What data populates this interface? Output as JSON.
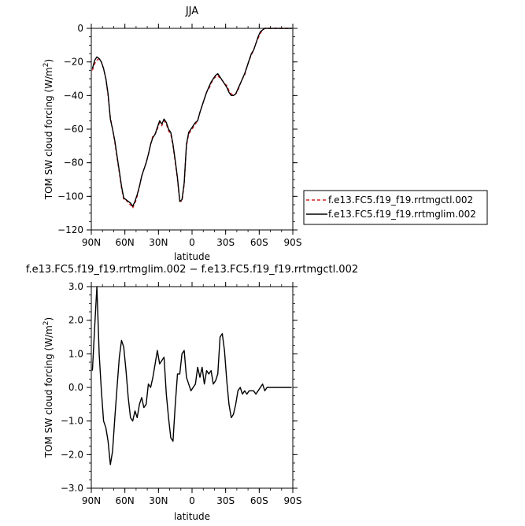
{
  "chart_data": [
    {
      "type": "line",
      "title": "JJA",
      "xlabel": "latitude",
      "ylabel": "TOM SW cloud forcing (W/m",
      "ylabel_sup": "2",
      "ylabel_close": ")",
      "xlim": [
        90,
        -90
      ],
      "ylim": [
        -120,
        0
      ],
      "x_ticks": [
        90,
        60,
        30,
        0,
        -30,
        -60,
        -90
      ],
      "x_tick_labels": [
        "90N",
        "60N",
        "30N",
        "0",
        "30S",
        "60S",
        "90S"
      ],
      "y_ticks": [
        -120,
        -100,
        -80,
        -60,
        -40,
        -20,
        0
      ],
      "y_tick_labels": [
        "−120",
        "−100",
        "−80",
        "−60",
        "−40",
        "−20",
        "0"
      ],
      "legend_position": "right",
      "series": [
        {
          "name": "f.e13.FC5.f19_f19.rrtmgctl.002",
          "color": "#d62020",
          "dash": "dashed",
          "x": [
            89,
            87,
            85,
            83,
            81,
            79,
            77,
            75,
            73,
            71,
            69,
            67,
            65,
            63,
            61,
            59,
            57,
            55,
            53,
            51,
            49,
            47,
            45,
            43,
            41,
            39,
            37,
            35,
            33,
            31,
            29,
            27,
            25,
            23,
            21,
            19,
            17,
            15,
            13,
            11,
            9,
            7,
            5,
            3,
            1,
            -1,
            -3,
            -5,
            -7,
            -9,
            -11,
            -13,
            -15,
            -17,
            -19,
            -21,
            -23,
            -25,
            -27,
            -29,
            -31,
            -33,
            -35,
            -37,
            -39,
            -41,
            -43,
            -45,
            -47,
            -49,
            -51,
            -53,
            -55,
            -57,
            -59,
            -61,
            -63,
            -65,
            -67,
            -69,
            -71,
            -73,
            -75,
            -77,
            -79,
            -81,
            -83,
            -85,
            -87,
            -89
          ],
          "y": [
            -25,
            -21,
            -19,
            -18,
            -20,
            -24,
            -30,
            -40,
            -53,
            -60,
            -68,
            -77,
            -86,
            -95,
            -102,
            -102,
            -104,
            -105,
            -107,
            -104,
            -100,
            -94,
            -88,
            -84,
            -80,
            -75,
            -69,
            -64,
            -63,
            -60,
            -56,
            -58,
            -55,
            -57,
            -61,
            -63,
            -70,
            -80,
            -90,
            -103,
            -103,
            -93,
            -70,
            -63,
            -61,
            -59,
            -57,
            -55,
            -50,
            -46,
            -42,
            -38,
            -36,
            -33,
            -30,
            -29,
            -28,
            -30,
            -31,
            -33,
            -34,
            -37,
            -39,
            -40,
            -39,
            -37,
            -33,
            -30,
            -28,
            -23,
            -19,
            -16,
            -13,
            -9,
            -6,
            -3,
            -1,
            0,
            0,
            0,
            0,
            0,
            0,
            0,
            0,
            0,
            0,
            0,
            0,
            0
          ]
        },
        {
          "name": "f.e13.FC5.f19_f19.rrtmglim.002",
          "color": "#000000",
          "dash": "solid",
          "x": [
            89,
            87,
            85,
            83,
            81,
            79,
            77,
            75,
            73,
            71,
            69,
            67,
            65,
            63,
            61,
            59,
            57,
            55,
            53,
            51,
            49,
            47,
            45,
            43,
            41,
            39,
            37,
            35,
            33,
            31,
            29,
            27,
            25,
            23,
            21,
            19,
            17,
            15,
            13,
            11,
            9,
            7,
            5,
            3,
            1,
            -1,
            -3,
            -5,
            -7,
            -9,
            -11,
            -13,
            -15,
            -17,
            -19,
            -21,
            -23,
            -25,
            -27,
            -29,
            -31,
            -33,
            -35,
            -37,
            -39,
            -41,
            -43,
            -45,
            -47,
            -49,
            -51,
            -53,
            -55,
            -57,
            -59,
            -61,
            -63,
            -65,
            -67,
            -69,
            -71,
            -73,
            -75,
            -77,
            -79,
            -81,
            -83,
            -85,
            -87,
            -89
          ],
          "y": [
            -24,
            -19,
            -17,
            -18,
            -20,
            -24,
            -30,
            -39,
            -54,
            -60,
            -67,
            -76,
            -85,
            -94,
            -101,
            -102,
            -103,
            -104,
            -106,
            -103,
            -99,
            -94,
            -88,
            -84,
            -80,
            -75,
            -69,
            -65,
            -63,
            -59,
            -55,
            -57,
            -54,
            -56,
            -60,
            -62,
            -69,
            -79,
            -89,
            -103,
            -102,
            -92,
            -69,
            -62,
            -60,
            -58,
            -56,
            -55,
            -50,
            -46,
            -42,
            -38,
            -35,
            -32,
            -30,
            -28,
            -27,
            -29,
            -31,
            -33,
            -35,
            -38,
            -40,
            -40,
            -39,
            -36,
            -33,
            -30,
            -27,
            -23,
            -19,
            -15,
            -13,
            -9,
            -5,
            -2,
            -1,
            0,
            0,
            0,
            0,
            0,
            0,
            0,
            0,
            0,
            0,
            0,
            0,
            0
          ]
        }
      ]
    },
    {
      "type": "line",
      "title": "f.e13.FC5.f19_f19.rrtmglim.002 − f.e13.FC5.f19_f19.rrtmgctl.002",
      "xlabel": "latitude",
      "ylabel": "TOM SW cloud forcing (W/m",
      "ylabel_sup": "2",
      "ylabel_close": ")",
      "xlim": [
        90,
        -90
      ],
      "ylim": [
        -3,
        3
      ],
      "x_ticks": [
        90,
        60,
        30,
        0,
        -30,
        -60,
        -90
      ],
      "x_tick_labels": [
        "90N",
        "60N",
        "30N",
        "0",
        "30S",
        "60S",
        "90S"
      ],
      "y_ticks": [
        -3,
        -2,
        -1,
        0,
        1,
        2,
        3
      ],
      "y_tick_labels": [
        "−3.0",
        "−2.0",
        "−1.0",
        "0.0",
        "1.0",
        "2.0",
        "3.0"
      ],
      "series": [
        {
          "color": "#000000",
          "x": [
            89,
            87,
            85,
            83,
            81,
            79,
            77,
            75,
            73,
            71,
            69,
            67,
            65,
            63,
            61,
            59,
            57,
            55,
            53,
            51,
            49,
            47,
            45,
            43,
            41,
            39,
            37,
            35,
            33,
            31,
            29,
            27,
            25,
            23,
            21,
            19,
            17,
            15,
            13,
            11,
            9,
            7,
            5,
            3,
            1,
            -1,
            -3,
            -5,
            -7,
            -9,
            -11,
            -13,
            -15,
            -17,
            -19,
            -21,
            -23,
            -25,
            -27,
            -29,
            -31,
            -33,
            -35,
            -37,
            -39,
            -41,
            -43,
            -45,
            -47,
            -49,
            -51,
            -53,
            -55,
            -57,
            -59,
            -61,
            -63,
            -65,
            -67,
            -69,
            -71,
            -73,
            -75,
            -77,
            -79,
            -81,
            -83,
            -85,
            -87,
            -89
          ],
          "y": [
            0.5,
            1.8,
            3.0,
            1.0,
            -0.1,
            -1.0,
            -1.2,
            -1.6,
            -2.3,
            -1.9,
            -0.9,
            0.0,
            0.9,
            1.4,
            1.2,
            0.5,
            -0.3,
            -0.9,
            -1.0,
            -0.7,
            -0.9,
            -0.5,
            -0.3,
            -0.6,
            -0.5,
            0.1,
            0.0,
            0.3,
            0.7,
            1.1,
            0.7,
            0.8,
            0.9,
            -0.2,
            -0.9,
            -1.5,
            -1.6,
            -0.5,
            0.4,
            0.4,
            1.0,
            1.1,
            0.3,
            0.1,
            -0.1,
            0.0,
            0.1,
            0.6,
            0.3,
            0.6,
            0.1,
            0.5,
            0.4,
            0.5,
            0.1,
            0.2,
            0.4,
            1.5,
            1.6,
            1.1,
            0.2,
            -0.5,
            -0.9,
            -0.8,
            -0.5,
            -0.1,
            0.0,
            -0.2,
            -0.1,
            -0.2,
            -0.1,
            -0.1,
            -0.1,
            -0.2,
            -0.1,
            0.0,
            0.1,
            -0.1,
            0.0,
            0.0,
            0.0,
            0.0,
            0.0,
            0.0,
            0.0,
            0.0,
            0.0,
            0.0,
            0.0,
            0.0
          ]
        }
      ]
    }
  ]
}
